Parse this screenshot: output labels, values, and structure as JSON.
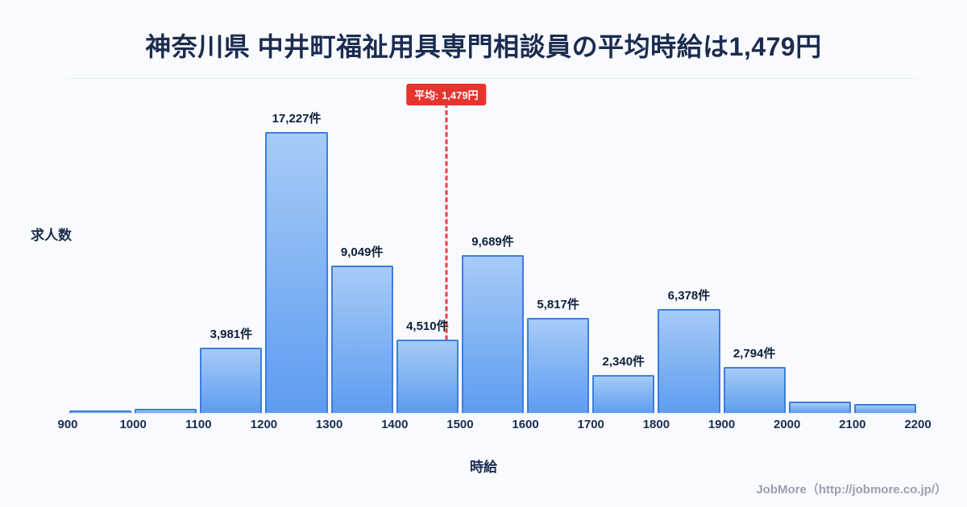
{
  "title": "神奈川県 中井町福祉用具専門相談員の平均時給は1,479円",
  "chart_data": {
    "type": "bar",
    "title": "神奈川県 中井町福祉用具専門相談員の平均時給は1,479円",
    "xlabel": "時給",
    "ylabel": "求人数",
    "x_range": [
      900,
      2200
    ],
    "ylim": [
      0,
      18000
    ],
    "bin_edges": [
      900,
      1000,
      1100,
      1200,
      1300,
      1400,
      1500,
      1600,
      1700,
      1800,
      1900,
      2000,
      2100,
      2200
    ],
    "values": [
      150,
      250,
      3981,
      17227,
      9049,
      4510,
      9689,
      5817,
      2340,
      6378,
      2794,
      700,
      550
    ],
    "bar_labels": [
      "",
      "",
      "3,981件",
      "17,227件",
      "9,049件",
      "4,510件",
      "9,689件",
      "5,817件",
      "2,340件",
      "6,378件",
      "2,794件",
      "",
      ""
    ],
    "average": {
      "value": 1479,
      "label": "平均: 1,479円"
    },
    "legend": "none",
    "grid": "off",
    "colors": {
      "bar_fill_top": "#a6cbf7",
      "bar_fill_bottom": "#5e9cf0",
      "bar_border": "#3d7edd",
      "average_line": "#e8433f",
      "average_badge_bg": "#e8332e",
      "title_text": "#1b2c50",
      "background": "#f8fafd"
    }
  },
  "footer": {
    "credit": "JobMore（http://jobmore.co.jp/）"
  }
}
